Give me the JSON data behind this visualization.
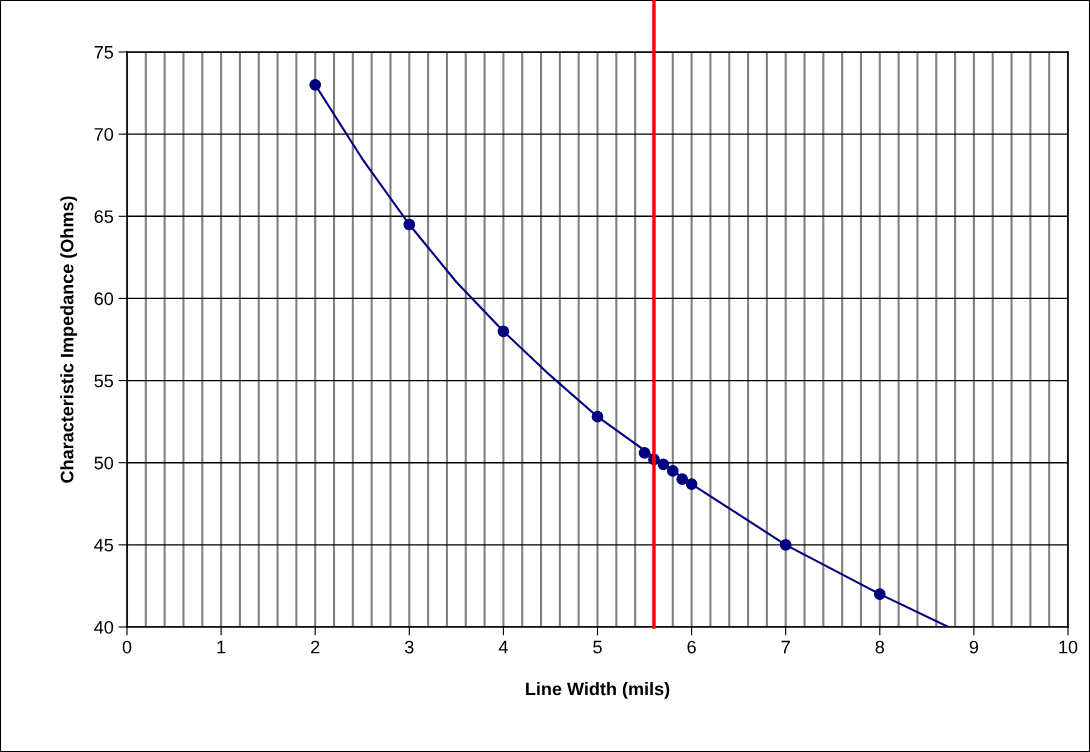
{
  "chart_data": {
    "type": "scatter",
    "xlabel": "Line Width (mils)",
    "ylabel": "Characteristic Impedance (Ohms)",
    "xlim": [
      0,
      10
    ],
    "ylim": [
      40,
      75
    ],
    "xticks": [
      0,
      {
        "value": 0.2,
        "label": null
      },
      {
        "value": 0.4,
        "label": null
      },
      {
        "value": 0.6,
        "label": null
      },
      {
        "value": 0.8,
        "label": null
      },
      1,
      {
        "value": 1.2,
        "label": null
      },
      {
        "value": 1.4,
        "label": null
      },
      {
        "value": 1.6,
        "label": null
      },
      {
        "value": 1.8,
        "label": null
      },
      2,
      {
        "value": 2.2,
        "label": null
      },
      {
        "value": 2.4,
        "label": null
      },
      {
        "value": 2.6,
        "label": null
      },
      {
        "value": 2.8,
        "label": null
      },
      3,
      {
        "value": 3.2,
        "label": null
      },
      {
        "value": 3.4,
        "label": null
      },
      {
        "value": 3.6,
        "label": null
      },
      {
        "value": 3.8,
        "label": null
      },
      4,
      {
        "value": 4.2,
        "label": null
      },
      {
        "value": 4.4,
        "label": null
      },
      {
        "value": 4.6,
        "label": null
      },
      {
        "value": 4.8,
        "label": null
      },
      5,
      {
        "value": 5.2,
        "label": null
      },
      {
        "value": 5.4,
        "label": null
      },
      {
        "value": 5.6,
        "label": null
      },
      {
        "value": 5.8,
        "label": null
      },
      6,
      {
        "value": 6.2,
        "label": null
      },
      {
        "value": 6.4,
        "label": null
      },
      {
        "value": 6.6,
        "label": null
      },
      {
        "value": 6.8,
        "label": null
      },
      7,
      {
        "value": 7.2,
        "label": null
      },
      {
        "value": 7.4,
        "label": null
      },
      {
        "value": 7.6,
        "label": null
      },
      {
        "value": 7.8,
        "label": null
      },
      8,
      {
        "value": 8.2,
        "label": null
      },
      {
        "value": 8.4,
        "label": null
      },
      {
        "value": 8.6,
        "label": null
      },
      {
        "value": 8.8,
        "label": null
      },
      9,
      {
        "value": 9.2,
        "label": null
      },
      {
        "value": 9.4,
        "label": null
      },
      {
        "value": 9.6,
        "label": null
      },
      {
        "value": 9.8,
        "label": null
      },
      10
    ],
    "yticks": [
      40,
      45,
      50,
      55,
      60,
      65,
      70,
      75
    ],
    "grid": true,
    "legend": false,
    "series": [
      {
        "type": "line",
        "color": "#000080",
        "marker": "none",
        "x": [
          2,
          2.5,
          3,
          3.5,
          4,
          4.5,
          5,
          6,
          7,
          8,
          8.73
        ],
        "values": [
          73,
          68.5,
          64.5,
          61,
          58,
          55.3,
          52.8,
          48.7,
          45,
          42,
          40
        ]
      },
      {
        "color": "#000080",
        "marker": "circle",
        "x": [
          2,
          3,
          4,
          5,
          5.5,
          5.6,
          5.7,
          5.8,
          5.9,
          6,
          7,
          8
        ],
        "values": [
          73,
          64.5,
          58,
          52.8,
          50.6,
          50.2,
          49.9,
          49.5,
          49.0,
          48.7,
          45,
          42
        ]
      }
    ],
    "ref_lines": [
      {
        "axis": "x",
        "value": 5.6,
        "color": "#ff0000"
      }
    ]
  }
}
